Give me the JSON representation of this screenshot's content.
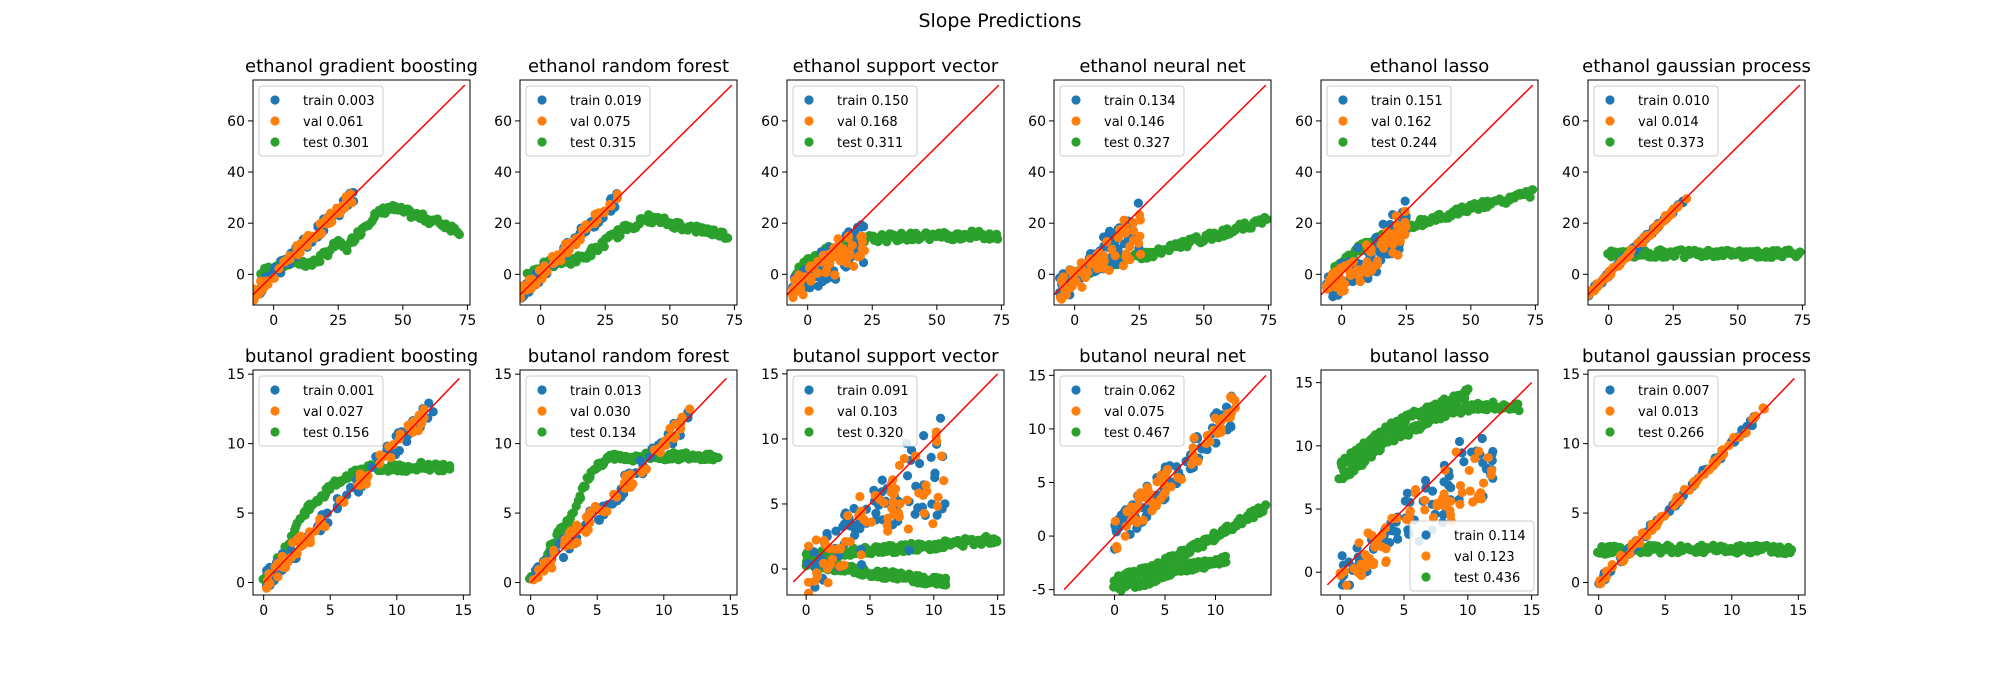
{
  "figure": {
    "title": "Slope Predictions"
  },
  "colors": {
    "train": "#1f77b4",
    "val": "#ff7f0e",
    "test": "#2ca02c",
    "identity": "#ff0000"
  },
  "chart_data": [
    {
      "type": "scatter",
      "title": "ethanol gradient boosting",
      "xlim": [
        -8,
        76
      ],
      "ylim": [
        -12,
        76
      ],
      "xticks": [
        0,
        25,
        50,
        75
      ],
      "yticks": [
        0,
        20,
        40,
        60
      ],
      "legend": "top-left",
      "series": [
        {
          "name": "train",
          "mse": "0.003"
        },
        {
          "name": "val",
          "mse": "0.061"
        },
        {
          "name": "test",
          "mse": "0.301"
        }
      ],
      "test_curve": [
        [
          -5,
          0
        ],
        [
          0,
          3
        ],
        [
          8,
          5
        ],
        [
          15,
          4
        ],
        [
          20,
          8
        ],
        [
          25,
          12
        ],
        [
          28,
          10
        ],
        [
          32,
          15
        ],
        [
          38,
          22
        ],
        [
          45,
          26
        ],
        [
          52,
          24
        ],
        [
          58,
          22
        ],
        [
          65,
          20
        ],
        [
          72,
          17
        ]
      ],
      "identity": [
        [
          -8,
          -8
        ],
        [
          74,
          74
        ]
      ],
      "fit_range": [
        -8,
        31
      ],
      "spread": 2.5
    },
    {
      "type": "scatter",
      "title": "ethanol random forest",
      "xlim": [
        -8,
        76
      ],
      "ylim": [
        -12,
        76
      ],
      "xticks": [
        0,
        25,
        50,
        75
      ],
      "yticks": [
        0,
        20,
        40,
        60
      ],
      "legend": "top-left",
      "series": [
        {
          "name": "train",
          "mse": "0.019"
        },
        {
          "name": "val",
          "mse": "0.075"
        },
        {
          "name": "test",
          "mse": "0.315"
        }
      ],
      "test_curve": [
        [
          -5,
          0
        ],
        [
          0,
          3
        ],
        [
          8,
          5
        ],
        [
          15,
          6
        ],
        [
          22,
          10
        ],
        [
          28,
          15
        ],
        [
          35,
          19
        ],
        [
          42,
          22
        ],
        [
          50,
          20
        ],
        [
          58,
          18
        ],
        [
          65,
          17
        ],
        [
          72,
          15
        ]
      ],
      "identity": [
        [
          -8,
          -8
        ],
        [
          74,
          74
        ]
      ],
      "fit_range": [
        -8,
        30
      ],
      "spread": 2.5
    },
    {
      "type": "scatter",
      "title": "ethanol support vector",
      "xlim": [
        -8,
        76
      ],
      "ylim": [
        -12,
        76
      ],
      "xticks": [
        0,
        25,
        50,
        75
      ],
      "yticks": [
        0,
        20,
        40,
        60
      ],
      "legend": "top-left",
      "series": [
        {
          "name": "train",
          "mse": "0.150"
        },
        {
          "name": "val",
          "mse": "0.168"
        },
        {
          "name": "test",
          "mse": "0.311"
        }
      ],
      "test_curve": [
        [
          -5,
          0
        ],
        [
          0,
          5
        ],
        [
          8,
          10
        ],
        [
          15,
          12
        ],
        [
          25,
          14
        ],
        [
          35,
          14.5
        ],
        [
          45,
          15
        ],
        [
          55,
          15
        ],
        [
          65,
          15.5
        ],
        [
          74,
          15
        ]
      ],
      "identity": [
        [
          -8,
          -8
        ],
        [
          74,
          74
        ]
      ],
      "fit_range": [
        -6,
        22
      ],
      "spread": 4,
      "flat": 0.45
    },
    {
      "type": "scatter",
      "title": "ethanol neural net",
      "xlim": [
        -8,
        76
      ],
      "ylim": [
        -12,
        76
      ],
      "xticks": [
        0,
        25,
        50,
        75
      ],
      "yticks": [
        0,
        20,
        40,
        60
      ],
      "legend": "top-left",
      "series": [
        {
          "name": "train",
          "mse": "0.134"
        },
        {
          "name": "val",
          "mse": "0.146"
        },
        {
          "name": "test",
          "mse": "0.327"
        }
      ],
      "test_curve": [
        [
          -5,
          -2
        ],
        [
          0,
          0
        ],
        [
          10,
          3
        ],
        [
          20,
          6
        ],
        [
          30,
          8
        ],
        [
          40,
          11
        ],
        [
          50,
          14
        ],
        [
          60,
          17
        ],
        [
          70,
          20
        ],
        [
          74,
          21
        ]
      ],
      "identity": [
        [
          -8,
          -8
        ],
        [
          74,
          74
        ]
      ],
      "fit_range": [
        -6,
        26
      ],
      "spread": 5,
      "flat": 0.55
    },
    {
      "type": "scatter",
      "title": "ethanol lasso",
      "xlim": [
        -8,
        76
      ],
      "ylim": [
        -12,
        76
      ],
      "xticks": [
        0,
        25,
        50,
        75
      ],
      "yticks": [
        0,
        20,
        40,
        60
      ],
      "legend": "top-left",
      "series": [
        {
          "name": "train",
          "mse": "0.151"
        },
        {
          "name": "val",
          "mse": "0.162"
        },
        {
          "name": "test",
          "mse": "0.244"
        }
      ],
      "test_curve": [
        [
          -5,
          -2
        ],
        [
          0,
          5
        ],
        [
          10,
          12
        ],
        [
          20,
          16
        ],
        [
          30,
          20
        ],
        [
          40,
          23
        ],
        [
          50,
          26
        ],
        [
          60,
          28
        ],
        [
          70,
          31
        ],
        [
          74,
          32
        ]
      ],
      "identity": [
        [
          -8,
          -8
        ],
        [
          74,
          74
        ]
      ],
      "fit_range": [
        -6,
        25
      ],
      "spread": 5,
      "flat": 0.5
    },
    {
      "type": "scatter",
      "title": "ethanol gaussian process",
      "xlim": [
        -8,
        76
      ],
      "ylim": [
        -12,
        76
      ],
      "xticks": [
        0,
        25,
        50,
        75
      ],
      "yticks": [
        0,
        20,
        40,
        60
      ],
      "legend": "top-left",
      "series": [
        {
          "name": "train",
          "mse": "0.010"
        },
        {
          "name": "val",
          "mse": "0.014"
        },
        {
          "name": "test",
          "mse": "0.373"
        }
      ],
      "test_curve": [
        [
          0,
          8
        ],
        [
          10,
          8
        ],
        [
          20,
          8.2
        ],
        [
          30,
          8
        ],
        [
          40,
          8
        ],
        [
          50,
          8.1
        ],
        [
          60,
          8
        ],
        [
          70,
          8
        ],
        [
          74,
          8
        ]
      ],
      "identity": [
        [
          -8,
          -8
        ],
        [
          74,
          74
        ]
      ],
      "fit_range": [
        -8,
        31
      ],
      "spread": 1
    },
    {
      "type": "scatter",
      "title": "butanol gradient boosting",
      "xlim": [
        -0.8,
        15.5
      ],
      "ylim": [
        -0.9,
        15.3
      ],
      "xticks": [
        0,
        5,
        10,
        15
      ],
      "yticks": [
        0,
        5,
        10,
        15
      ],
      "legend": "top-left",
      "series": [
        {
          "name": "train",
          "mse": "0.001"
        },
        {
          "name": "val",
          "mse": "0.027"
        },
        {
          "name": "test",
          "mse": "0.156"
        }
      ],
      "test_curve": [
        [
          0,
          0
        ],
        [
          1,
          1.5
        ],
        [
          2,
          3
        ],
        [
          3,
          5
        ],
        [
          4,
          6
        ],
        [
          5,
          6.8
        ],
        [
          6,
          7.5
        ],
        [
          7,
          8
        ],
        [
          8,
          8.2
        ],
        [
          9,
          8.3
        ],
        [
          10,
          8.2
        ],
        [
          11,
          8.3
        ],
        [
          12,
          8.4
        ],
        [
          13,
          8.3
        ],
        [
          14,
          8.3
        ]
      ],
      "identity": [
        [
          0,
          0
        ],
        [
          14.7,
          14.7
        ]
      ],
      "fit_range": [
        0,
        12.8
      ],
      "spread": 0.7
    },
    {
      "type": "scatter",
      "title": "butanol random forest",
      "xlim": [
        -0.8,
        15.5
      ],
      "ylim": [
        -0.9,
        15.3
      ],
      "xticks": [
        0,
        5,
        10,
        15
      ],
      "yticks": [
        0,
        5,
        10,
        15
      ],
      "legend": "top-left",
      "series": [
        {
          "name": "train",
          "mse": "0.013"
        },
        {
          "name": "val",
          "mse": "0.030"
        },
        {
          "name": "test",
          "mse": "0.134"
        }
      ],
      "test_curve": [
        [
          0,
          0
        ],
        [
          1,
          1.5
        ],
        [
          2,
          3.5
        ],
        [
          3,
          4.5
        ],
        [
          4,
          7
        ],
        [
          5,
          8.5
        ],
        [
          6,
          9
        ],
        [
          8,
          9
        ],
        [
          10,
          9.1
        ],
        [
          12,
          9.1
        ],
        [
          14,
          9
        ]
      ],
      "identity": [
        [
          0,
          0
        ],
        [
          14.7,
          14.7
        ]
      ],
      "fit_range": [
        0,
        12
      ],
      "spread": 0.7
    },
    {
      "type": "scatter",
      "title": "butanol support vector",
      "xlim": [
        -1.5,
        15.5
      ],
      "ylim": [
        -2,
        15.3
      ],
      "xticks": [
        0,
        5,
        10,
        15
      ],
      "yticks": [
        0,
        5,
        10,
        15
      ],
      "legend": "top-left",
      "series": [
        {
          "name": "train",
          "mse": "0.091"
        },
        {
          "name": "val",
          "mse": "0.103"
        },
        {
          "name": "test",
          "mse": "0.320"
        }
      ],
      "test_curve": [
        [
          0,
          1
        ],
        [
          3,
          1.3
        ],
        [
          6,
          1.5
        ],
        [
          9,
          1.7
        ],
        [
          12,
          2
        ],
        [
          15,
          2.3
        ]
      ],
      "test_curve2": [
        [
          0,
          0.5
        ],
        [
          3,
          0
        ],
        [
          6,
          -0.4
        ],
        [
          9,
          -0.8
        ],
        [
          11,
          -1
        ]
      ],
      "identity": [
        [
          -1,
          -1
        ],
        [
          15,
          15
        ]
      ],
      "fit_range": [
        0,
        11
      ],
      "spread": 2,
      "flat": 0.4
    },
    {
      "type": "scatter",
      "title": "butanol neural net",
      "xlim": [
        -6,
        15.5
      ],
      "ylim": [
        -5.5,
        15.5
      ],
      "xticks": [
        0,
        5,
        10
      ],
      "yticks": [
        -5,
        0,
        5,
        10,
        15
      ],
      "legend": "top-left",
      "series": [
        {
          "name": "train",
          "mse": "0.062"
        },
        {
          "name": "val",
          "mse": "0.075"
        },
        {
          "name": "test",
          "mse": "0.467"
        }
      ],
      "test_curve": [
        [
          0,
          -4
        ],
        [
          2,
          -3.5
        ],
        [
          4,
          -3
        ],
        [
          6,
          -2
        ],
        [
          8,
          -1
        ],
        [
          10,
          0
        ],
        [
          12,
          1
        ],
        [
          14,
          2.2
        ],
        [
          15,
          2.8
        ]
      ],
      "test_curve2": [
        [
          0,
          -5
        ],
        [
          2,
          -4.5
        ],
        [
          4,
          -4
        ],
        [
          6,
          -3
        ],
        [
          8,
          -2.8
        ],
        [
          11,
          -2.2
        ]
      ],
      "identity": [
        [
          -5,
          -5
        ],
        [
          15,
          15
        ]
      ],
      "fit_range": [
        0,
        12
      ],
      "spread": 1.5
    },
    {
      "type": "scatter",
      "title": "butanol lasso",
      "xlim": [
        -1.5,
        15.5
      ],
      "ylim": [
        -1.8,
        16
      ],
      "xticks": [
        0,
        5,
        10,
        15
      ],
      "yticks": [
        0,
        5,
        10,
        15
      ],
      "legend": "bottom-right",
      "series": [
        {
          "name": "train",
          "mse": "0.114"
        },
        {
          "name": "val",
          "mse": "0.123"
        },
        {
          "name": "test",
          "mse": "0.436"
        }
      ],
      "test_curve": [
        [
          0,
          7.5
        ],
        [
          2,
          9
        ],
        [
          4,
          10.5
        ],
        [
          6,
          11.5
        ],
        [
          8,
          12.5
        ],
        [
          10,
          13
        ],
        [
          12,
          13.2
        ],
        [
          14,
          13
        ]
      ],
      "test_curve2": [
        [
          0,
          8.5
        ],
        [
          2,
          10
        ],
        [
          4,
          11.5
        ],
        [
          6,
          12.5
        ],
        [
          8,
          13.3
        ],
        [
          10,
          14.2
        ]
      ],
      "identity": [
        [
          -1,
          -1
        ],
        [
          15,
          15
        ]
      ],
      "fit_range": [
        0,
        12
      ],
      "spread": 1.5,
      "flat": 0.5
    },
    {
      "type": "scatter",
      "title": "butanol gaussian process",
      "xlim": [
        -0.8,
        15.5
      ],
      "ylim": [
        -0.9,
        15.3
      ],
      "xticks": [
        0,
        5,
        10,
        15
      ],
      "yticks": [
        0,
        5,
        10,
        15
      ],
      "legend": "top-left",
      "series": [
        {
          "name": "train",
          "mse": "0.007"
        },
        {
          "name": "val",
          "mse": "0.013"
        },
        {
          "name": "test",
          "mse": "0.266"
        }
      ],
      "test_curve": [
        [
          0,
          2.3
        ],
        [
          3,
          2.4
        ],
        [
          6,
          2.4
        ],
        [
          9,
          2.4
        ],
        [
          12,
          2.4
        ],
        [
          14.5,
          2.35
        ]
      ],
      "identity": [
        [
          0,
          0
        ],
        [
          14.7,
          14.7
        ]
      ],
      "fit_range": [
        0,
        12.5
      ],
      "spread": 0.3
    }
  ]
}
